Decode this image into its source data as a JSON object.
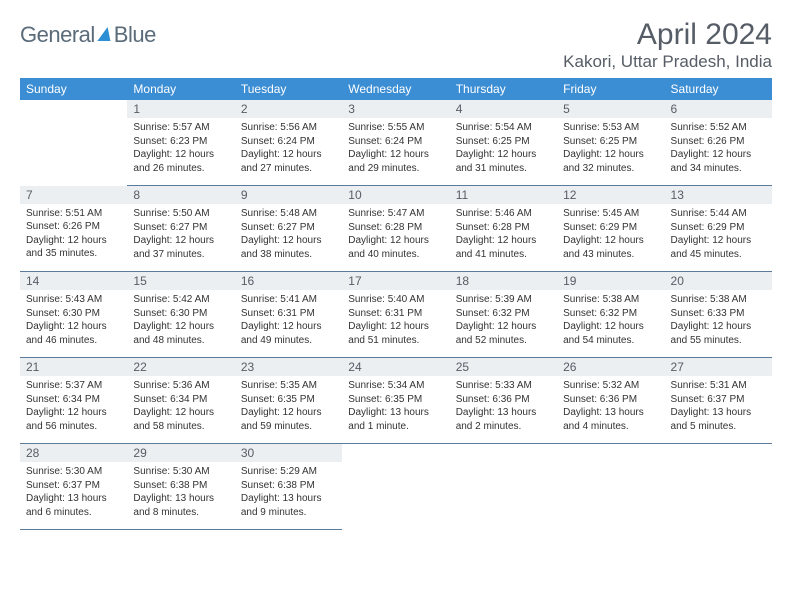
{
  "brand": {
    "word1": "General",
    "word2": "Blue"
  },
  "title": "April 2024",
  "location": "Kakori, Uttar Pradesh, India",
  "colors": {
    "header_bg": "#3b8dd4",
    "header_text": "#ffffff",
    "daynum_bg": "#eceff1",
    "border": "#5c7a9a",
    "title_color": "#565d66"
  },
  "weekdays": [
    "Sunday",
    "Monday",
    "Tuesday",
    "Wednesday",
    "Thursday",
    "Friday",
    "Saturday"
  ],
  "weeks": [
    [
      {
        "empty": true
      },
      {
        "n": "1",
        "sr": "Sunrise: 5:57 AM",
        "ss": "Sunset: 6:23 PM",
        "dl": "Daylight: 12 hours and 26 minutes."
      },
      {
        "n": "2",
        "sr": "Sunrise: 5:56 AM",
        "ss": "Sunset: 6:24 PM",
        "dl": "Daylight: 12 hours and 27 minutes."
      },
      {
        "n": "3",
        "sr": "Sunrise: 5:55 AM",
        "ss": "Sunset: 6:24 PM",
        "dl": "Daylight: 12 hours and 29 minutes."
      },
      {
        "n": "4",
        "sr": "Sunrise: 5:54 AM",
        "ss": "Sunset: 6:25 PM",
        "dl": "Daylight: 12 hours and 31 minutes."
      },
      {
        "n": "5",
        "sr": "Sunrise: 5:53 AM",
        "ss": "Sunset: 6:25 PM",
        "dl": "Daylight: 12 hours and 32 minutes."
      },
      {
        "n": "6",
        "sr": "Sunrise: 5:52 AM",
        "ss": "Sunset: 6:26 PM",
        "dl": "Daylight: 12 hours and 34 minutes."
      }
    ],
    [
      {
        "n": "7",
        "sr": "Sunrise: 5:51 AM",
        "ss": "Sunset: 6:26 PM",
        "dl": "Daylight: 12 hours and 35 minutes."
      },
      {
        "n": "8",
        "sr": "Sunrise: 5:50 AM",
        "ss": "Sunset: 6:27 PM",
        "dl": "Daylight: 12 hours and 37 minutes."
      },
      {
        "n": "9",
        "sr": "Sunrise: 5:48 AM",
        "ss": "Sunset: 6:27 PM",
        "dl": "Daylight: 12 hours and 38 minutes."
      },
      {
        "n": "10",
        "sr": "Sunrise: 5:47 AM",
        "ss": "Sunset: 6:28 PM",
        "dl": "Daylight: 12 hours and 40 minutes."
      },
      {
        "n": "11",
        "sr": "Sunrise: 5:46 AM",
        "ss": "Sunset: 6:28 PM",
        "dl": "Daylight: 12 hours and 41 minutes."
      },
      {
        "n": "12",
        "sr": "Sunrise: 5:45 AM",
        "ss": "Sunset: 6:29 PM",
        "dl": "Daylight: 12 hours and 43 minutes."
      },
      {
        "n": "13",
        "sr": "Sunrise: 5:44 AM",
        "ss": "Sunset: 6:29 PM",
        "dl": "Daylight: 12 hours and 45 minutes."
      }
    ],
    [
      {
        "n": "14",
        "sr": "Sunrise: 5:43 AM",
        "ss": "Sunset: 6:30 PM",
        "dl": "Daylight: 12 hours and 46 minutes."
      },
      {
        "n": "15",
        "sr": "Sunrise: 5:42 AM",
        "ss": "Sunset: 6:30 PM",
        "dl": "Daylight: 12 hours and 48 minutes."
      },
      {
        "n": "16",
        "sr": "Sunrise: 5:41 AM",
        "ss": "Sunset: 6:31 PM",
        "dl": "Daylight: 12 hours and 49 minutes."
      },
      {
        "n": "17",
        "sr": "Sunrise: 5:40 AM",
        "ss": "Sunset: 6:31 PM",
        "dl": "Daylight: 12 hours and 51 minutes."
      },
      {
        "n": "18",
        "sr": "Sunrise: 5:39 AM",
        "ss": "Sunset: 6:32 PM",
        "dl": "Daylight: 12 hours and 52 minutes."
      },
      {
        "n": "19",
        "sr": "Sunrise: 5:38 AM",
        "ss": "Sunset: 6:32 PM",
        "dl": "Daylight: 12 hours and 54 minutes."
      },
      {
        "n": "20",
        "sr": "Sunrise: 5:38 AM",
        "ss": "Sunset: 6:33 PM",
        "dl": "Daylight: 12 hours and 55 minutes."
      }
    ],
    [
      {
        "n": "21",
        "sr": "Sunrise: 5:37 AM",
        "ss": "Sunset: 6:34 PM",
        "dl": "Daylight: 12 hours and 56 minutes."
      },
      {
        "n": "22",
        "sr": "Sunrise: 5:36 AM",
        "ss": "Sunset: 6:34 PM",
        "dl": "Daylight: 12 hours and 58 minutes."
      },
      {
        "n": "23",
        "sr": "Sunrise: 5:35 AM",
        "ss": "Sunset: 6:35 PM",
        "dl": "Daylight: 12 hours and 59 minutes."
      },
      {
        "n": "24",
        "sr": "Sunrise: 5:34 AM",
        "ss": "Sunset: 6:35 PM",
        "dl": "Daylight: 13 hours and 1 minute."
      },
      {
        "n": "25",
        "sr": "Sunrise: 5:33 AM",
        "ss": "Sunset: 6:36 PM",
        "dl": "Daylight: 13 hours and 2 minutes."
      },
      {
        "n": "26",
        "sr": "Sunrise: 5:32 AM",
        "ss": "Sunset: 6:36 PM",
        "dl": "Daylight: 13 hours and 4 minutes."
      },
      {
        "n": "27",
        "sr": "Sunrise: 5:31 AM",
        "ss": "Sunset: 6:37 PM",
        "dl": "Daylight: 13 hours and 5 minutes."
      }
    ],
    [
      {
        "n": "28",
        "sr": "Sunrise: 5:30 AM",
        "ss": "Sunset: 6:37 PM",
        "dl": "Daylight: 13 hours and 6 minutes."
      },
      {
        "n": "29",
        "sr": "Sunrise: 5:30 AM",
        "ss": "Sunset: 6:38 PM",
        "dl": "Daylight: 13 hours and 8 minutes."
      },
      {
        "n": "30",
        "sr": "Sunrise: 5:29 AM",
        "ss": "Sunset: 6:38 PM",
        "dl": "Daylight: 13 hours and 9 minutes."
      },
      {
        "empty": true
      },
      {
        "empty": true
      },
      {
        "empty": true
      },
      {
        "empty": true
      }
    ]
  ]
}
